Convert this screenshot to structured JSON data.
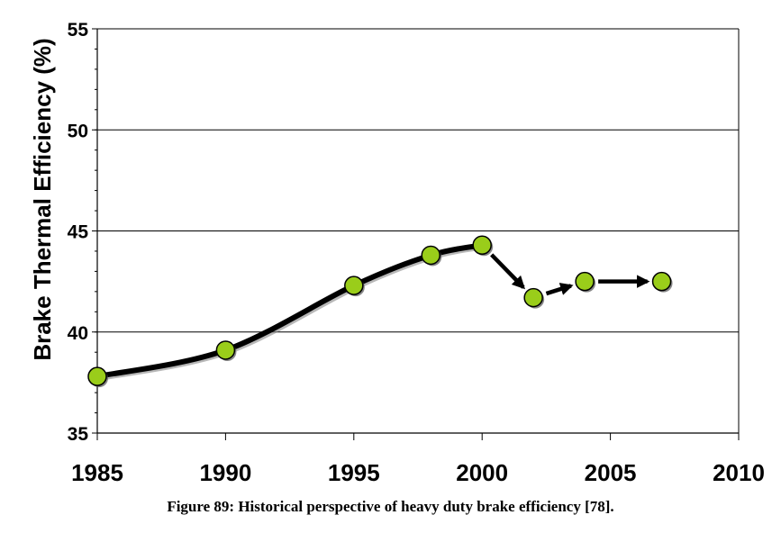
{
  "chart_data": {
    "type": "line",
    "ylabel": "Brake Thermal Efficiency (%)",
    "xlabel": "",
    "xlim": [
      1985,
      2010
    ],
    "ylim": [
      35,
      55
    ],
    "xticks": [
      "1985",
      "1990",
      "1995",
      "2000",
      "2005",
      "2010"
    ],
    "yticks": [
      "35",
      "40",
      "45",
      "50",
      "55"
    ],
    "grid": "horizontal",
    "series": [
      {
        "style": "smooth-curve",
        "points": [
          [
            1985,
            37.8
          ],
          [
            1990,
            39.1
          ],
          [
            1995,
            42.3
          ],
          [
            1998,
            43.8
          ],
          [
            2000,
            44.3
          ]
        ]
      },
      {
        "style": "arrows",
        "points": [
          [
            2000,
            44.3
          ],
          [
            2002,
            41.7
          ],
          [
            2004,
            42.5
          ],
          [
            2007,
            42.5
          ]
        ]
      }
    ],
    "marker_color": "#9acd1a"
  },
  "caption": "Figure 89: Historical perspective of heavy duty brake efficiency [78]."
}
